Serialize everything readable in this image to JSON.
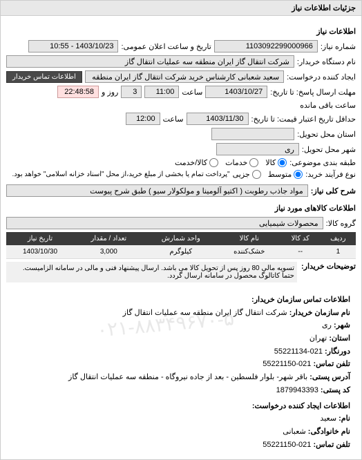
{
  "panel": {
    "title": "جزئیات اطلاعات نیاز"
  },
  "header": {
    "section": "اطلاعات نیاز"
  },
  "fields": {
    "req_no_label": "شماره نیاز:",
    "req_no": "1103092299000966",
    "announce_label": "تاریخ و ساعت اعلان عمومی:",
    "announce": "1403/10/23 - 10:55",
    "buyer_org_label": "نام دستگاه خریدار:",
    "buyer_org": "شرکت انتقال گاز ایران منطقه سه عملیات انتقال گاز",
    "creator_label": "ایجاد کننده درخواست:",
    "creator": "سعید شعبانی کارشناس خرید شرکت انتقال گاز ایران منطقه سه عملیات انتقال",
    "contact_btn": "اطلاعات تماس خریدار",
    "deadline_label": "مهلت ارسال پاسخ: تا تاریخ:",
    "deadline_date": "1403/10/27",
    "time_label": "ساعت",
    "deadline_time": "11:00",
    "remaining_days": "3",
    "days_label": "روز و",
    "remaining_time": "22:48:58",
    "remaining_label": "ساعت باقی مانده",
    "valid_label": "حداقل تاریخ اعتبار قیمت: تا تاریخ:",
    "valid_date": "1403/11/30",
    "valid_time": "12:00",
    "province_label": "استان محل تحویل:",
    "province": "",
    "city_label": "شهر محل تحویل:",
    "city": "ری",
    "packing_label": "طبقه بندی موضوعی:",
    "packing_opts": {
      "kala": "کالا",
      "khadamat": "خدمات",
      "both": "کالا/خدمت"
    },
    "process_label": "نوع فرآیند خرید:",
    "process_opts": {
      "motavaset": "متوسط",
      "jozi": "جزیی"
    },
    "process_note": "\"پرداخت تمام یا بخشی از مبلغ خرید،از محل \"اسناد خزانه اسلامی\" خواهد بود.",
    "desc_label": "شرح کلی نیاز:",
    "desc": "مواد جاذب رطوبت ( اکتیو آلومینا و مولکولار سیو ) طبق شرح پیوست",
    "items_title": "اطلاعات کالاهای مورد نیاز",
    "group_label": "گروه کالا:",
    "group": "محصولات شیمیایی"
  },
  "table": {
    "cols": [
      "ردیف",
      "کد کالا",
      "نام کالا",
      "واحد شمارش",
      "تعداد / مقدار",
      "تاریخ نیاز"
    ],
    "rows": [
      [
        "1",
        "--",
        "خشک‌کننده",
        "کیلوگرم",
        "3,000",
        "1403/10/30"
      ]
    ]
  },
  "notes": {
    "label": "توضیحات خریدار:",
    "text": "تسویه مالی 80 روز پس از تحویل کالا می باشد. ارسال پیشنهاد فنی و مالی در سامانه الزامیست. حتما کاتالوگ محصول در سامانه ارسال گردد."
  },
  "contact": {
    "title": "اطلاعات تماس سازمان خریدار:",
    "org_label": "نام سازمان خریدار:",
    "org": "شرکت انتقال گاز ایران منطقه سه عملیات انتقال گاز",
    "city_label": "شهر:",
    "city": "ری",
    "province_label": "استان:",
    "province": "تهران",
    "fax_label": "دورنگار:",
    "fax": "021-55221134",
    "tel_label": "تلفن تماس:",
    "tel": "021-55221150",
    "addr_label": "آدرس پستی:",
    "addr": "باقر شهر- بلوار فلسطین - بعد از جاده نیروگاه - منطقه سه عملیات انتقال گاز",
    "postal_label": "کد پستی:",
    "postal": "1879943393",
    "req_creator_title": "اطلاعات ایجاد کننده درخواست:",
    "name_label": "نام:",
    "name": "سعید",
    "family_label": "نام خانوادگی:",
    "family": "شعبانی",
    "tel2_label": "تلفن تماس:",
    "tel2": "021-55221150"
  },
  "watermark": "۰۲۱-۸۸۳۴۹۶۷۰-۵"
}
